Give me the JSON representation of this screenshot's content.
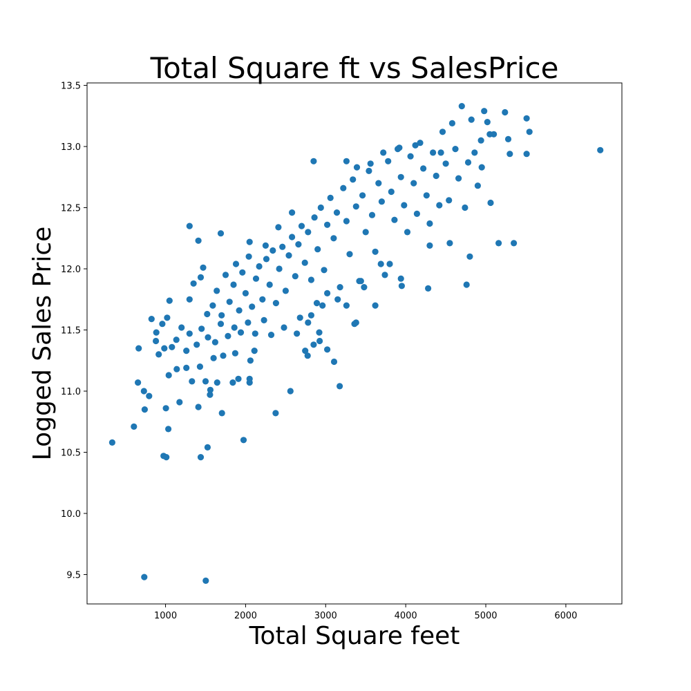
{
  "chart_data": {
    "type": "scatter",
    "title": "Total Square ft vs SalesPrice",
    "xlabel": "Total Square feet",
    "ylabel": "Logged Sales Price",
    "xlim": [
      20,
      6700
    ],
    "ylim": [
      9.26,
      13.52
    ],
    "xticks": [
      1000,
      2000,
      3000,
      4000,
      5000,
      6000
    ],
    "yticks": [
      9.5,
      10.0,
      10.5,
      11.0,
      11.5,
      12.0,
      12.5,
      13.0,
      13.5
    ],
    "grid": false,
    "point_color": "#1f77b4",
    "series": [
      {
        "points": [
          [
            334,
            10.58
          ],
          [
            735,
            9.48
          ],
          [
            1503,
            9.45
          ],
          [
            605,
            10.71
          ],
          [
            975,
            10.47
          ],
          [
            1010,
            10.46
          ],
          [
            1440,
            10.46
          ],
          [
            1525,
            10.54
          ],
          [
            1975,
            10.6
          ],
          [
            1035,
            10.69
          ],
          [
            1705,
            10.82
          ],
          [
            2375,
            10.82
          ],
          [
            740,
            10.85
          ],
          [
            1005,
            10.86
          ],
          [
            1410,
            10.87
          ],
          [
            655,
            11.07
          ],
          [
            730,
            11.0
          ],
          [
            795,
            10.96
          ],
          [
            1175,
            10.91
          ],
          [
            1555,
            10.97
          ],
          [
            1560,
            11.01
          ],
          [
            2560,
            11.0
          ],
          [
            3175,
            11.04
          ],
          [
            1840,
            11.07
          ],
          [
            2050,
            11.07
          ],
          [
            2050,
            11.1
          ],
          [
            1330,
            11.08
          ],
          [
            1500,
            11.08
          ],
          [
            1645,
            11.07
          ],
          [
            1910,
            11.1
          ],
          [
            1040,
            11.13
          ],
          [
            1140,
            11.18
          ],
          [
            1260,
            11.19
          ],
          [
            1430,
            11.2
          ],
          [
            1600,
            11.27
          ],
          [
            1720,
            11.29
          ],
          [
            1870,
            11.31
          ],
          [
            2060,
            11.25
          ],
          [
            2110,
            11.33
          ],
          [
            2775,
            11.29
          ],
          [
            2925,
            11.41
          ],
          [
            3105,
            11.24
          ],
          [
            3020,
            11.34
          ],
          [
            2745,
            11.33
          ],
          [
            665,
            11.35
          ],
          [
            825,
            11.59
          ],
          [
            880,
            11.41
          ],
          [
            915,
            11.3
          ],
          [
            985,
            11.35
          ],
          [
            1080,
            11.36
          ],
          [
            1135,
            11.42
          ],
          [
            1260,
            11.33
          ],
          [
            1300,
            11.47
          ],
          [
            1390,
            11.38
          ],
          [
            1450,
            11.51
          ],
          [
            1530,
            11.44
          ],
          [
            1620,
            11.4
          ],
          [
            1690,
            11.55
          ],
          [
            1780,
            11.45
          ],
          [
            1860,
            11.52
          ],
          [
            1940,
            11.48
          ],
          [
            2030,
            11.56
          ],
          [
            2120,
            11.47
          ],
          [
            2230,
            11.58
          ],
          [
            2320,
            11.46
          ],
          [
            2480,
            11.52
          ],
          [
            2640,
            11.47
          ],
          [
            2780,
            11.56
          ],
          [
            2850,
            11.38
          ],
          [
            3380,
            11.56
          ],
          [
            2920,
            11.48
          ],
          [
            885,
            11.48
          ],
          [
            960,
            11.55
          ],
          [
            1020,
            11.6
          ],
          [
            1050,
            11.74
          ],
          [
            1200,
            11.52
          ],
          [
            1300,
            11.75
          ],
          [
            1350,
            11.88
          ],
          [
            1440,
            11.93
          ],
          [
            1470,
            12.01
          ],
          [
            1520,
            11.63
          ],
          [
            1590,
            11.7
          ],
          [
            1640,
            11.82
          ],
          [
            1700,
            11.62
          ],
          [
            1750,
            11.95
          ],
          [
            1800,
            11.73
          ],
          [
            1850,
            11.87
          ],
          [
            1880,
            12.04
          ],
          [
            1920,
            11.66
          ],
          [
            1960,
            11.97
          ],
          [
            2000,
            11.8
          ],
          [
            2040,
            12.1
          ],
          [
            2080,
            11.69
          ],
          [
            2130,
            11.92
          ],
          [
            2170,
            12.02
          ],
          [
            2210,
            11.75
          ],
          [
            2260,
            12.08
          ],
          [
            2300,
            11.87
          ],
          [
            2340,
            12.15
          ],
          [
            2380,
            11.72
          ],
          [
            2420,
            12.0
          ],
          [
            2460,
            12.18
          ],
          [
            2500,
            11.82
          ],
          [
            2540,
            12.11
          ],
          [
            2580,
            12.26
          ],
          [
            2620,
            11.94
          ],
          [
            2660,
            12.2
          ],
          [
            2700,
            12.35
          ],
          [
            2740,
            12.05
          ],
          [
            2780,
            12.3
          ],
          [
            2820,
            11.91
          ],
          [
            2860,
            12.42
          ],
          [
            2900,
            12.16
          ],
          [
            2940,
            12.5
          ],
          [
            2980,
            11.99
          ],
          [
            3020,
            12.36
          ],
          [
            3060,
            12.58
          ],
          [
            3100,
            12.25
          ],
          [
            3140,
            12.46
          ],
          [
            3180,
            11.85
          ],
          [
            3220,
            12.66
          ],
          [
            3260,
            12.39
          ],
          [
            3300,
            12.12
          ],
          [
            3340,
            12.73
          ],
          [
            3380,
            12.51
          ],
          [
            3420,
            11.9
          ],
          [
            3460,
            12.6
          ],
          [
            3500,
            12.3
          ],
          [
            3540,
            12.8
          ],
          [
            3580,
            12.44
          ],
          [
            3620,
            12.14
          ],
          [
            3660,
            12.7
          ],
          [
            3700,
            12.55
          ],
          [
            3740,
            11.95
          ],
          [
            3780,
            12.88
          ],
          [
            3820,
            12.63
          ],
          [
            3860,
            12.4
          ],
          [
            3900,
            12.98
          ],
          [
            3940,
            12.75
          ],
          [
            3980,
            12.52
          ],
          [
            4020,
            12.3
          ],
          [
            4060,
            12.92
          ],
          [
            4100,
            12.7
          ],
          [
            4140,
            12.45
          ],
          [
            4180,
            13.03
          ],
          [
            4220,
            12.82
          ],
          [
            4260,
            12.6
          ],
          [
            4300,
            12.37
          ],
          [
            4340,
            12.95
          ],
          [
            4380,
            12.76
          ],
          [
            4420,
            12.52
          ],
          [
            4460,
            13.12
          ],
          [
            4500,
            12.86
          ],
          [
            4540,
            12.56
          ],
          [
            4580,
            13.19
          ],
          [
            4620,
            12.98
          ],
          [
            4660,
            12.74
          ],
          [
            4700,
            13.33
          ],
          [
            4740,
            12.5
          ],
          [
            4780,
            12.87
          ],
          [
            4820,
            13.22
          ],
          [
            4860,
            12.95
          ],
          [
            4900,
            12.68
          ],
          [
            4940,
            13.05
          ],
          [
            4980,
            13.29
          ],
          [
            5020,
            13.2
          ],
          [
            5060,
            12.54
          ],
          [
            5100,
            13.1
          ],
          [
            5240,
            13.28
          ],
          [
            5280,
            13.06
          ],
          [
            5300,
            12.94
          ],
          [
            5510,
            13.23
          ],
          [
            5510,
            12.94
          ],
          [
            5545,
            13.12
          ],
          [
            6430,
            12.97
          ],
          [
            5160,
            12.21
          ],
          [
            5350,
            12.21
          ],
          [
            4550,
            12.21
          ],
          [
            4800,
            12.1
          ],
          [
            4760,
            11.87
          ],
          [
            4280,
            11.84
          ],
          [
            4300,
            12.19
          ],
          [
            3950,
            11.86
          ],
          [
            3940,
            11.92
          ],
          [
            3800,
            12.04
          ],
          [
            3690,
            12.04
          ],
          [
            3480,
            11.85
          ],
          [
            3440,
            11.9
          ],
          [
            3620,
            11.7
          ],
          [
            3360,
            11.55
          ],
          [
            3260,
            11.7
          ],
          [
            3150,
            11.75
          ],
          [
            3020,
            11.8
          ],
          [
            2960,
            11.7
          ],
          [
            2890,
            11.72
          ],
          [
            2820,
            11.62
          ],
          [
            2680,
            11.6
          ],
          [
            1300,
            12.35
          ],
          [
            1410,
            12.23
          ],
          [
            1690,
            12.29
          ],
          [
            2050,
            12.22
          ],
          [
            2250,
            12.19
          ],
          [
            2410,
            12.34
          ],
          [
            2580,
            12.46
          ],
          [
            2850,
            12.88
          ],
          [
            3260,
            12.88
          ],
          [
            3390,
            12.83
          ],
          [
            3560,
            12.86
          ],
          [
            3720,
            12.95
          ],
          [
            3920,
            12.99
          ],
          [
            4120,
            13.01
          ],
          [
            4440,
            12.95
          ],
          [
            4950,
            12.83
          ],
          [
            5050,
            13.1
          ]
        ]
      }
    ]
  }
}
